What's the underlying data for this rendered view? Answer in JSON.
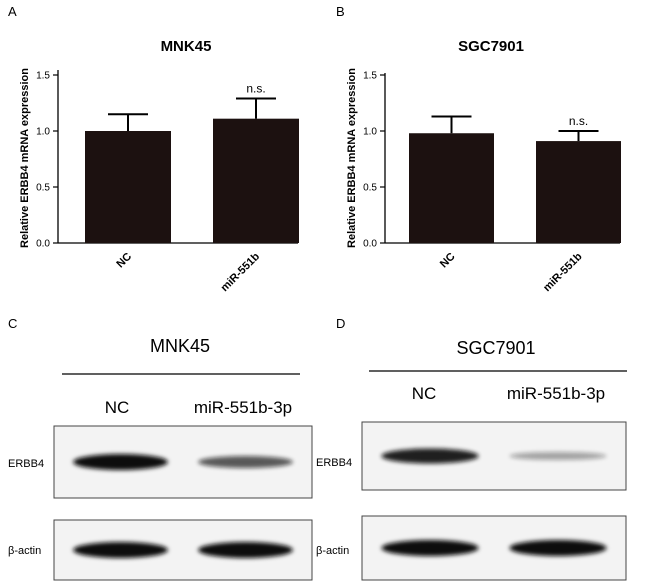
{
  "chart_data": [
    {
      "panel": "A",
      "type": "bar",
      "title": "MNK45",
      "ylabel": "Relative ERBB4 mRNA expression",
      "xlabel": "",
      "categories": [
        "NC",
        "miR-551b"
      ],
      "values": [
        1.0,
        1.11
      ],
      "errors": [
        0.15,
        0.18
      ],
      "significance": [
        "",
        "n.s."
      ],
      "ylim": [
        0,
        1.5
      ],
      "yticks": [
        "0.0",
        "0.5",
        "1.0",
        "1.5"
      ],
      "bar_color": "#1c1110"
    },
    {
      "panel": "B",
      "type": "bar",
      "title": "SGC7901",
      "ylabel": "Relative ERBB4 mRNA expression",
      "xlabel": "",
      "categories": [
        "NC",
        "miR-551b"
      ],
      "values": [
        0.98,
        0.91
      ],
      "errors": [
        0.15,
        0.09
      ],
      "significance": [
        "",
        "n.s."
      ],
      "ylim": [
        0,
        1.5
      ],
      "yticks": [
        "0.0",
        "0.5",
        "1.0",
        "1.5"
      ],
      "bar_color": "#1c1110"
    }
  ],
  "blots": [
    {
      "panel": "C",
      "title": "MNK45",
      "lanes": [
        "NC",
        "miR-551b-3p"
      ],
      "rows": [
        {
          "label": "ERBB4",
          "intensity": [
            1.0,
            0.6
          ]
        },
        {
          "label": "β-actin",
          "intensity": [
            1.0,
            1.0
          ]
        }
      ]
    },
    {
      "panel": "D",
      "title": "SGC7901",
      "lanes": [
        "NC",
        "miR-551b-3p"
      ],
      "rows": [
        {
          "label": "ERBB4",
          "intensity": [
            0.9,
            0.2
          ]
        },
        {
          "label": "β-actin",
          "intensity": [
            1.0,
            1.0
          ]
        }
      ]
    }
  ]
}
